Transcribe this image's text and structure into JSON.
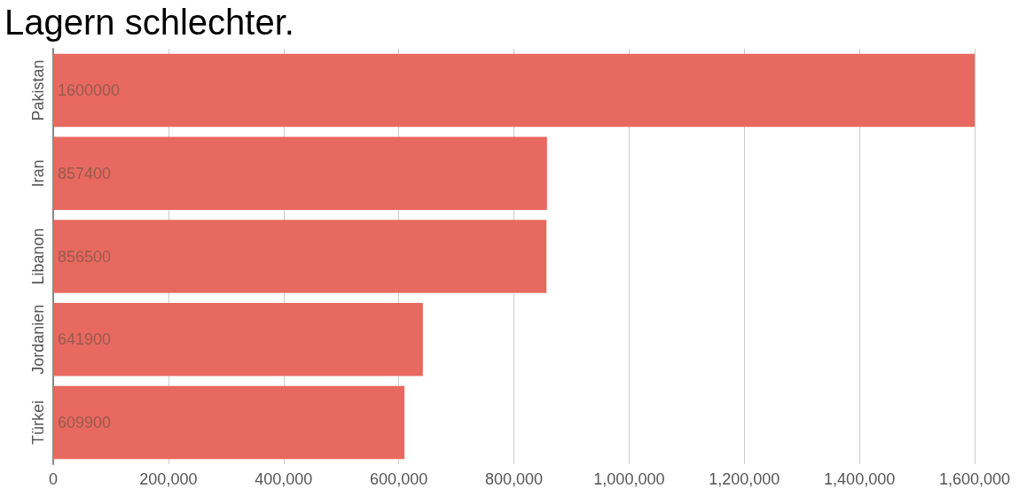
{
  "chart_data": {
    "type": "bar",
    "orientation": "horizontal",
    "title": "Lagern schlechter.",
    "categories": [
      "Pakistan",
      "Iran",
      "Libanon",
      "Jordanien",
      "Türkei"
    ],
    "values": [
      1600000,
      857400,
      856500,
      641900,
      609900
    ],
    "color": "#e8695f",
    "xlim": [
      0,
      1600000
    ],
    "xticks": [
      0,
      {
        "value": 200000,
        "label": "200,000"
      },
      {
        "value": 400000,
        "label": "400,000"
      },
      {
        "value": 600000,
        "label": "600,000"
      },
      {
        "value": 800000,
        "label": "800,000"
      },
      {
        "value": 1000000,
        "label": "1,000,000"
      },
      {
        "value": 1200000,
        "label": "1,200,000"
      },
      {
        "value": 1400000,
        "label": "1,400,000"
      },
      {
        "value": 1600000,
        "label": "1,600,000"
      }
    ],
    "grid": "x",
    "data_labels": true
  }
}
